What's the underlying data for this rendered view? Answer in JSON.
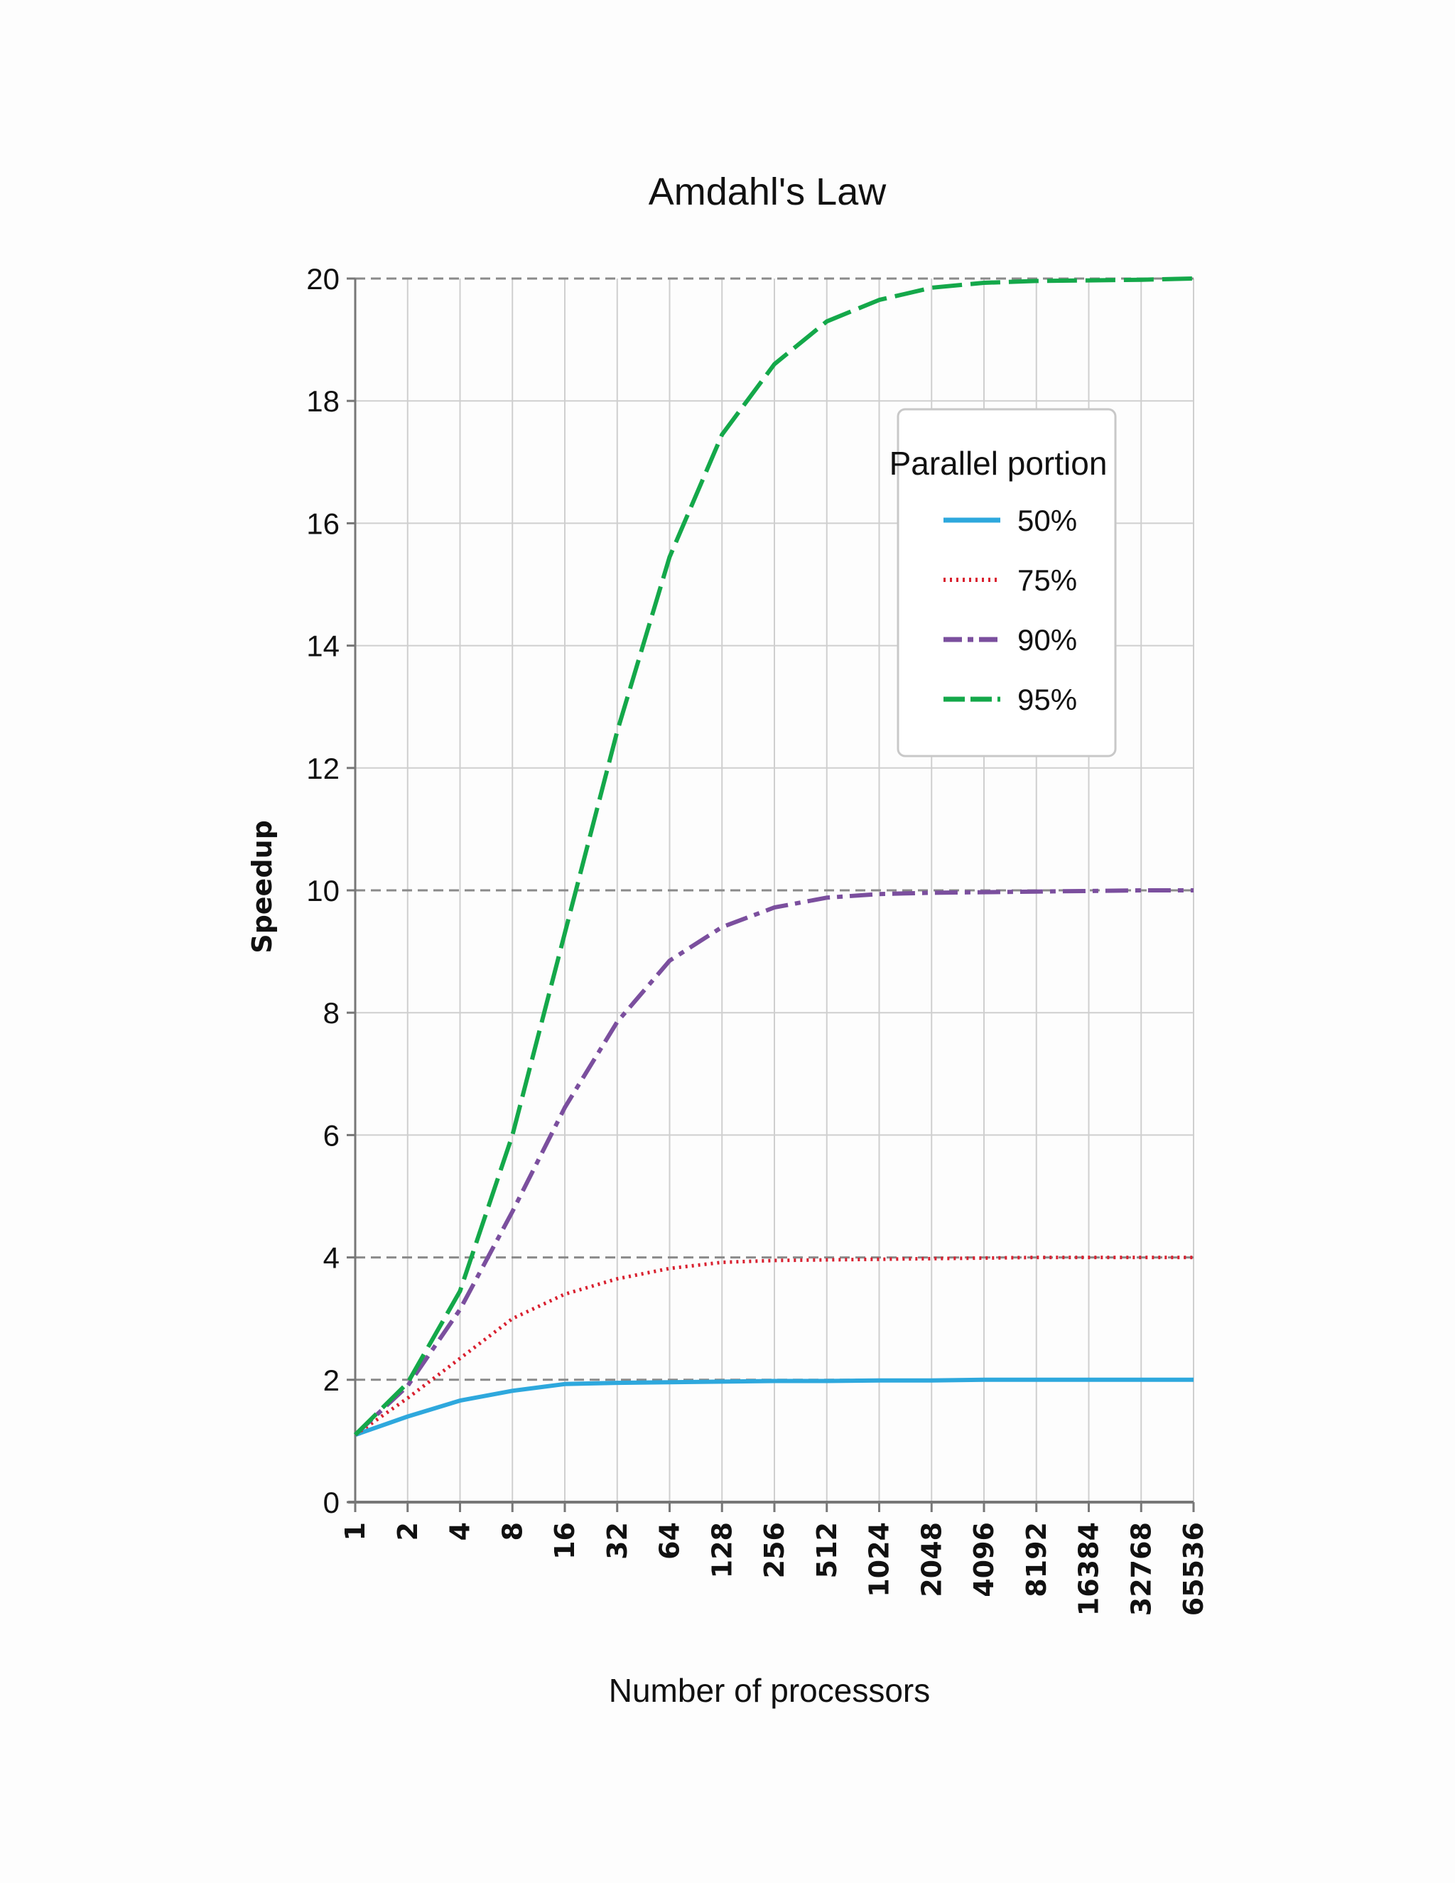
{
  "chart_data": {
    "type": "line",
    "title": "Amdahl's Law",
    "xlabel": "Number of processors",
    "ylabel": "Speedup",
    "x_scale": "log2",
    "categories": [
      "1",
      "2",
      "4",
      "8",
      "16",
      "32",
      "64",
      "128",
      "256",
      "512",
      "1024",
      "2048",
      "4096",
      "8192",
      "16384",
      "32768",
      "65536"
    ],
    "yticks": [
      "0",
      "2",
      "4",
      "6",
      "8",
      "10",
      "12",
      "14",
      "16",
      "18",
      "20"
    ],
    "ylim": [
      0,
      20
    ],
    "grid": true,
    "legend": {
      "title": "Parallel portion",
      "position": "top-right"
    },
    "series": [
      {
        "name": "50%",
        "color": "#2ea8dd",
        "style": "solid",
        "values": [
          1.1,
          1.4,
          1.66,
          1.82,
          1.93,
          1.95,
          1.96,
          1.97,
          1.98,
          1.98,
          1.99,
          1.99,
          2.0,
          2.0,
          2.0,
          2.0,
          2.0
        ]
      },
      {
        "name": "75%",
        "color": "#d9202f",
        "style": "dotted",
        "values": [
          1.1,
          1.7,
          2.35,
          3.0,
          3.4,
          3.65,
          3.82,
          3.92,
          3.95,
          3.96,
          3.97,
          3.98,
          3.99,
          4.0,
          4.0,
          4.0,
          4.0
        ]
      },
      {
        "name": "90%",
        "color": "#7b4f9e",
        "style": "dash-dot",
        "values": [
          1.1,
          1.9,
          3.15,
          4.75,
          6.45,
          7.85,
          8.85,
          9.4,
          9.72,
          9.88,
          9.94,
          9.96,
          9.97,
          9.98,
          9.99,
          10.0,
          10.0
        ]
      },
      {
        "name": "95%",
        "color": "#14a84a",
        "style": "dashed",
        "values": [
          1.1,
          1.95,
          3.45,
          6.0,
          9.3,
          12.6,
          15.45,
          17.45,
          18.6,
          19.3,
          19.65,
          19.85,
          19.93,
          19.96,
          19.97,
          19.98,
          20.0
        ]
      }
    ]
  }
}
